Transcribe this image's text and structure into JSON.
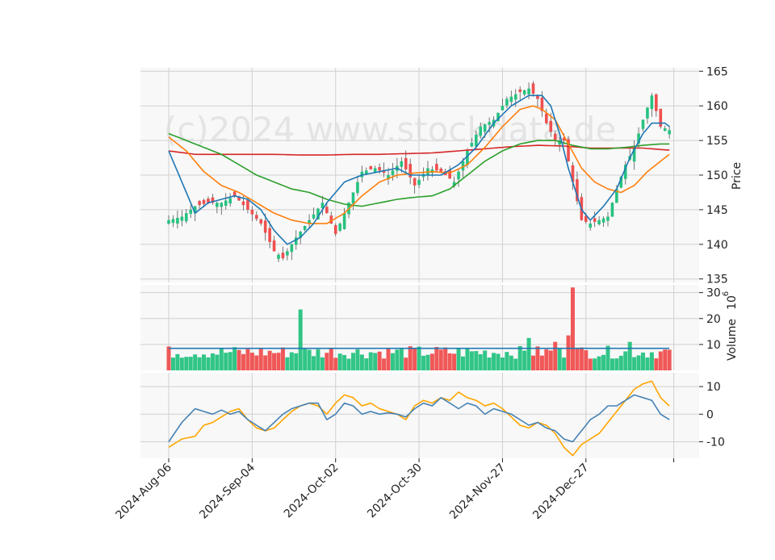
{
  "chart_data": {
    "type": "candlestick",
    "watermark": "(c)2024 www.stockdata.de",
    "x_tick_labels": [
      "2024-Aug-06",
      "2024-Sep-04",
      "2024-Oct-02",
      "2024-Oct-30",
      "2024-Nov-27",
      "2024-Dec-27"
    ],
    "colors": {
      "up": "#26c281",
      "down": "#ef4f4f",
      "ma_short": "#1f77b4",
      "ma_mid": "#ff7f0e",
      "ma_long": "#2ca02c",
      "ma_longest": "#d62728",
      "volume_avg": "#1f77b4",
      "osc_a": "#4682b4",
      "osc_b": "#ffa500",
      "panel_bg": "#f8f8f8",
      "grid": "#d0d0d0"
    },
    "panels": {
      "price": {
        "ylabel": "Price",
        "ylim": [
          134.5,
          165.5
        ],
        "ticks": [
          135,
          140,
          145,
          150,
          155,
          160,
          165
        ],
        "close_anchors": [
          [
            0,
            143.5
          ],
          [
            3,
            144
          ],
          [
            6,
            145.5
          ],
          [
            9,
            146
          ],
          [
            12,
            146
          ],
          [
            15,
            147
          ],
          [
            18,
            145
          ],
          [
            21,
            143
          ],
          [
            24,
            139
          ],
          [
            26,
            138
          ],
          [
            29,
            141
          ],
          [
            32,
            143.5
          ],
          [
            35,
            146
          ],
          [
            38,
            141.5
          ],
          [
            41,
            146
          ],
          [
            44,
            150.5
          ],
          [
            47,
            151
          ],
          [
            50,
            150
          ],
          [
            53,
            152
          ],
          [
            56,
            148.5
          ],
          [
            59,
            151
          ],
          [
            62,
            150.5
          ],
          [
            65,
            149
          ],
          [
            68,
            153.5
          ],
          [
            71,
            157
          ],
          [
            74,
            158
          ],
          [
            77,
            161
          ],
          [
            80,
            162
          ],
          [
            82,
            162.5
          ],
          [
            84,
            161
          ],
          [
            86,
            157.5
          ],
          [
            88,
            155
          ],
          [
            90,
            155
          ],
          [
            92,
            149
          ],
          [
            94,
            143.5
          ],
          [
            96,
            143
          ],
          [
            98,
            143.5
          ],
          [
            100,
            144
          ],
          [
            102,
            148
          ],
          [
            104,
            151.5
          ],
          [
            106,
            154
          ],
          [
            108,
            158
          ],
          [
            110,
            161.5
          ],
          [
            112,
            157
          ],
          [
            114,
            156.5
          ],
          [
            116,
            157
          ]
        ],
        "ma_short_anchors": [
          [
            0,
            153.5
          ],
          [
            3,
            149
          ],
          [
            6,
            144.5
          ],
          [
            9,
            146
          ],
          [
            12,
            146.5
          ],
          [
            15,
            147
          ],
          [
            18,
            146.5
          ],
          [
            21,
            145
          ],
          [
            24,
            142
          ],
          [
            27,
            140
          ],
          [
            30,
            141
          ],
          [
            33,
            143
          ],
          [
            36,
            146
          ],
          [
            40,
            149
          ],
          [
            44,
            150
          ],
          [
            48,
            150.5
          ],
          [
            52,
            151
          ],
          [
            55,
            150
          ],
          [
            58,
            150
          ],
          [
            62,
            150
          ],
          [
            66,
            151.5
          ],
          [
            70,
            154
          ],
          [
            74,
            157.5
          ],
          [
            78,
            160
          ],
          [
            82,
            161.5
          ],
          [
            85,
            161.5
          ],
          [
            87,
            160
          ],
          [
            89,
            156
          ],
          [
            91,
            151
          ],
          [
            94,
            145
          ],
          [
            96,
            143.5
          ],
          [
            99,
            145.5
          ],
          [
            102,
            148
          ],
          [
            105,
            152.5
          ],
          [
            108,
            156
          ],
          [
            110,
            157.5
          ],
          [
            113,
            157.5
          ],
          [
            114,
            157
          ]
        ],
        "ma_mid_anchors": [
          [
            0,
            155.5
          ],
          [
            4,
            153.5
          ],
          [
            8,
            150.5
          ],
          [
            12,
            148.5
          ],
          [
            16,
            147.5
          ],
          [
            20,
            146
          ],
          [
            24,
            144.5
          ],
          [
            28,
            143.5
          ],
          [
            32,
            143
          ],
          [
            36,
            143
          ],
          [
            40,
            144.5
          ],
          [
            44,
            147
          ],
          [
            48,
            149
          ],
          [
            52,
            150
          ],
          [
            56,
            150.3
          ],
          [
            60,
            150.5
          ],
          [
            64,
            150.3
          ],
          [
            68,
            151.5
          ],
          [
            72,
            154
          ],
          [
            76,
            157
          ],
          [
            80,
            159.5
          ],
          [
            83,
            160
          ],
          [
            85,
            159.5
          ],
          [
            88,
            158
          ],
          [
            91,
            154.5
          ],
          [
            94,
            151
          ],
          [
            97,
            149
          ],
          [
            100,
            148
          ],
          [
            103,
            147.5
          ],
          [
            106,
            148.5
          ],
          [
            109,
            150.5
          ],
          [
            112,
            152
          ],
          [
            114,
            153
          ]
        ],
        "ma_long_anchors": [
          [
            0,
            156
          ],
          [
            4,
            155
          ],
          [
            8,
            154
          ],
          [
            12,
            153
          ],
          [
            16,
            151.5
          ],
          [
            20,
            150
          ],
          [
            24,
            149
          ],
          [
            28,
            148
          ],
          [
            32,
            147.5
          ],
          [
            36,
            146.5
          ],
          [
            40,
            145.8
          ],
          [
            44,
            145.5
          ],
          [
            48,
            146
          ],
          [
            52,
            146.5
          ],
          [
            56,
            146.8
          ],
          [
            60,
            147
          ],
          [
            64,
            148
          ],
          [
            68,
            150
          ],
          [
            72,
            152
          ],
          [
            76,
            153.5
          ],
          [
            80,
            154.5
          ],
          [
            84,
            155
          ],
          [
            88,
            155
          ],
          [
            92,
            154.3
          ],
          [
            96,
            153.8
          ],
          [
            100,
            153.8
          ],
          [
            104,
            154
          ],
          [
            108,
            154.3
          ],
          [
            112,
            154.5
          ],
          [
            114,
            154.5
          ]
        ],
        "ma_longest_anchors": [
          [
            0,
            153.5
          ],
          [
            6,
            153
          ],
          [
            12,
            153
          ],
          [
            18,
            153
          ],
          [
            24,
            153
          ],
          [
            30,
            152.9
          ],
          [
            36,
            152.9
          ],
          [
            42,
            153
          ],
          [
            48,
            153
          ],
          [
            54,
            153.1
          ],
          [
            60,
            153.2
          ],
          [
            66,
            153.5
          ],
          [
            72,
            153.8
          ],
          [
            78,
            154.1
          ],
          [
            84,
            154.3
          ],
          [
            90,
            154.2
          ],
          [
            96,
            153.9
          ],
          [
            102,
            153.9
          ],
          [
            108,
            153.9
          ],
          [
            114,
            153.6
          ]
        ]
      },
      "volume": {
        "ylabel": "Volume",
        "scale_label": "10",
        "scale_exponent": "6",
        "ylim": [
          0,
          33
        ],
        "ticks": [
          10,
          20,
          30
        ],
        "average": 8.5,
        "spikes": [
          [
            30,
            23.5
          ],
          [
            62,
            8
          ],
          [
            88,
            11
          ],
          [
            91,
            13.5
          ],
          [
            92,
            32
          ],
          [
            82,
            12.5
          ],
          [
            105,
            11
          ]
        ]
      },
      "oscillator": {
        "ylim": [
          -16,
          15
        ],
        "ticks": [
          -10,
          0,
          10
        ],
        "line_a_anchors": [
          [
            0,
            -10
          ],
          [
            3,
            -3
          ],
          [
            6,
            2
          ],
          [
            8,
            1
          ],
          [
            10,
            0
          ],
          [
            12,
            1.5
          ],
          [
            14,
            0
          ],
          [
            16,
            1
          ],
          [
            18,
            -2
          ],
          [
            20,
            -4
          ],
          [
            22,
            -6
          ],
          [
            24,
            -3
          ],
          [
            26,
            0
          ],
          [
            28,
            2
          ],
          [
            30,
            3
          ],
          [
            32,
            4
          ],
          [
            34,
            4
          ],
          [
            36,
            -2
          ],
          [
            38,
            0
          ],
          [
            40,
            4
          ],
          [
            42,
            3
          ],
          [
            44,
            0
          ],
          [
            46,
            1
          ],
          [
            48,
            0
          ],
          [
            50,
            0.5
          ],
          [
            52,
            0
          ],
          [
            54,
            -1
          ],
          [
            56,
            2
          ],
          [
            58,
            4
          ],
          [
            60,
            3
          ],
          [
            62,
            6
          ],
          [
            64,
            4
          ],
          [
            66,
            2
          ],
          [
            68,
            4
          ],
          [
            70,
            3
          ],
          [
            72,
            0
          ],
          [
            74,
            2
          ],
          [
            76,
            1
          ],
          [
            78,
            0
          ],
          [
            80,
            -2
          ],
          [
            82,
            -4
          ],
          [
            84,
            -3
          ],
          [
            86,
            -5
          ],
          [
            88,
            -6
          ],
          [
            90,
            -9
          ],
          [
            92,
            -10
          ],
          [
            94,
            -6
          ],
          [
            96,
            -2
          ],
          [
            98,
            0
          ],
          [
            100,
            3
          ],
          [
            102,
            3
          ],
          [
            104,
            5
          ],
          [
            106,
            7
          ],
          [
            108,
            6
          ],
          [
            110,
            5
          ],
          [
            112,
            0
          ],
          [
            114,
            -2
          ]
        ],
        "line_b_anchors": [
          [
            0,
            -12
          ],
          [
            3,
            -9
          ],
          [
            6,
            -8
          ],
          [
            8,
            -4
          ],
          [
            10,
            -3
          ],
          [
            12,
            -1
          ],
          [
            14,
            1
          ],
          [
            16,
            2
          ],
          [
            18,
            -2
          ],
          [
            20,
            -5
          ],
          [
            22,
            -6
          ],
          [
            24,
            -5
          ],
          [
            26,
            -2
          ],
          [
            28,
            1
          ],
          [
            30,
            3
          ],
          [
            32,
            4
          ],
          [
            34,
            3
          ],
          [
            36,
            0
          ],
          [
            38,
            4
          ],
          [
            40,
            7
          ],
          [
            42,
            6
          ],
          [
            44,
            3
          ],
          [
            46,
            4
          ],
          [
            48,
            2
          ],
          [
            50,
            1
          ],
          [
            52,
            0
          ],
          [
            54,
            -2
          ],
          [
            56,
            3
          ],
          [
            58,
            5
          ],
          [
            60,
            4
          ],
          [
            62,
            6
          ],
          [
            64,
            5
          ],
          [
            66,
            8
          ],
          [
            68,
            6
          ],
          [
            70,
            5
          ],
          [
            72,
            3
          ],
          [
            74,
            4
          ],
          [
            76,
            2
          ],
          [
            78,
            -1
          ],
          [
            80,
            -4
          ],
          [
            82,
            -5
          ],
          [
            84,
            -3
          ],
          [
            86,
            -4
          ],
          [
            88,
            -7
          ],
          [
            90,
            -12
          ],
          [
            92,
            -15
          ],
          [
            94,
            -11
          ],
          [
            96,
            -9
          ],
          [
            98,
            -7
          ],
          [
            100,
            -3
          ],
          [
            102,
            1
          ],
          [
            104,
            5
          ],
          [
            106,
            9
          ],
          [
            108,
            11
          ],
          [
            110,
            12
          ],
          [
            112,
            6
          ],
          [
            114,
            3
          ]
        ]
      }
    }
  }
}
